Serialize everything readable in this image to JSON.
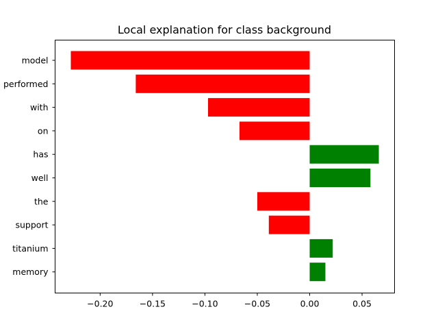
{
  "chart_data": {
    "type": "bar",
    "orientation": "horizontal",
    "title": "Local explanation for class background",
    "xlabel": "",
    "ylabel": "",
    "categories": [
      "model",
      "performed",
      "with",
      "on",
      "has",
      "well",
      "the",
      "support",
      "titanium",
      "memory"
    ],
    "values": [
      -0.228,
      -0.166,
      -0.097,
      -0.067,
      0.066,
      0.058,
      -0.05,
      -0.039,
      0.022,
      0.015
    ],
    "xlim": [
      -0.243,
      0.081
    ],
    "xticks": [
      -0.2,
      -0.15,
      -0.1,
      -0.05,
      0.0,
      0.05
    ],
    "xtick_labels": [
      "−0.20",
      "−0.15",
      "−0.10",
      "−0.05",
      "0.00",
      "0.05"
    ],
    "colors": {
      "positive": "#008000",
      "negative": "#ff0000"
    },
    "grid": false,
    "legend": "none"
  }
}
